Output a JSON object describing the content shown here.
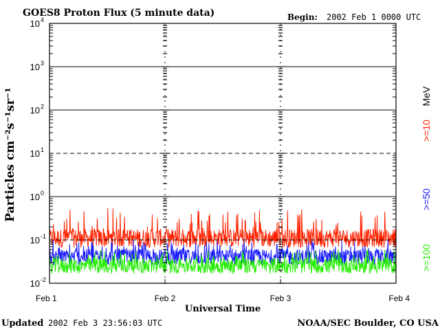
{
  "header": {
    "title": "GOES8 Proton Flux (5 minute data)",
    "begin_label": "Begin:",
    "begin_value": "2002 Feb 1 0000 UTC"
  },
  "footer": {
    "updated_label": "Updated",
    "updated_value": "2002 Feb  3 23:56:03 UTC",
    "source": "NOAA/SEC Boulder, CO USA"
  },
  "chart_data": {
    "type": "line",
    "title": "GOES8 Proton Flux (5 minute data)",
    "ylabel": "Particles cm⁻²s⁻¹sr⁻¹",
    "xlabel": "Universal Time",
    "yscale": "log",
    "ylim": [
      0.01,
      10000
    ],
    "y_ticks": [
      {
        "base": "10",
        "exp": "-2",
        "value": 0.01
      },
      {
        "base": "10",
        "exp": "-1",
        "value": 0.1
      },
      {
        "base": "10",
        "exp": "0",
        "value": 1
      },
      {
        "base": "10",
        "exp": "1",
        "value": 10
      },
      {
        "base": "10",
        "exp": "2",
        "value": 100
      },
      {
        "base": "10",
        "exp": "3",
        "value": 1000
      },
      {
        "base": "10",
        "exp": "4",
        "value": 10000
      }
    ],
    "x_ticks": [
      "Feb 1",
      "Feb 2",
      "Feb 3",
      "Feb 4"
    ],
    "xlim": [
      "2002-02-01T00:00",
      "2002-02-04T00:00"
    ],
    "thresholds": [
      {
        "value": 10,
        "style": "dashed"
      },
      {
        "value": 0.1,
        "style": "dashed"
      }
    ],
    "energy_unit": "MeV",
    "legend_placement": "right, vertical",
    "series": [
      {
        "name": ">=10",
        "color": "#ff2200",
        "typical": 0.11,
        "range": [
          0.06,
          0.55
        ]
      },
      {
        "name": ">=50",
        "color": "#1a1aff",
        "typical": 0.04,
        "range": [
          0.015,
          0.1
        ]
      },
      {
        "name": ">=100",
        "color": "#22ee00",
        "typical": 0.025,
        "range": [
          0.01,
          0.06
        ]
      }
    ]
  }
}
